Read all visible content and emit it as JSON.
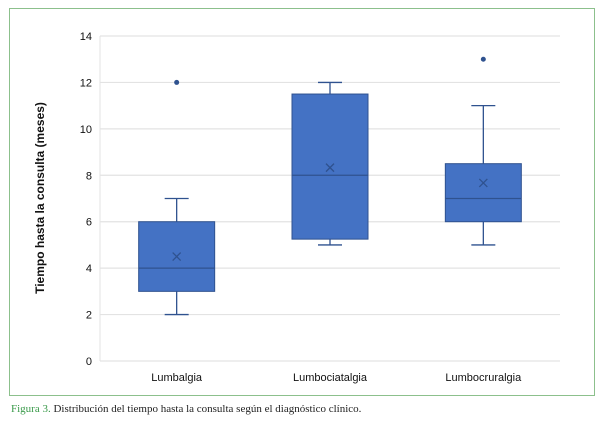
{
  "chart_data": {
    "type": "box",
    "title": "",
    "xlabel": "",
    "ylabel": "Tiempo hasta la consulta (meses)",
    "ylim": [
      0,
      14
    ],
    "yticks": [
      "0",
      "2",
      "4",
      "6",
      "8",
      "10",
      "12",
      "14"
    ],
    "grid": true,
    "categories": [
      "Lumbalgia",
      "Lumbociatalgia",
      "Lumbocruralgia"
    ],
    "series": [
      {
        "name": "Lumbalgia",
        "min": 2,
        "q1": 3,
        "median": 4,
        "q3": 6,
        "max": 7,
        "mean": 4.5,
        "outliers": [
          12
        ]
      },
      {
        "name": "Lumbociatalgia",
        "min": 5,
        "q1": 5.25,
        "median": 8,
        "q3": 11.5,
        "max": 12,
        "mean": 8.33,
        "outliers": []
      },
      {
        "name": "Lumbocruralgia",
        "min": 5,
        "q1": 6,
        "median": 7,
        "q3": 8.5,
        "max": 11,
        "mean": 7.67,
        "outliers": [
          13
        ]
      }
    ],
    "colors": {
      "box": "#4472c4",
      "box_edge": "#2f528f",
      "grid": "#e3e3e3"
    }
  },
  "caption": {
    "label": "Figura 3.",
    "text": " Distribución del tiempo hasta la consulta según el diagnóstico clínico."
  }
}
